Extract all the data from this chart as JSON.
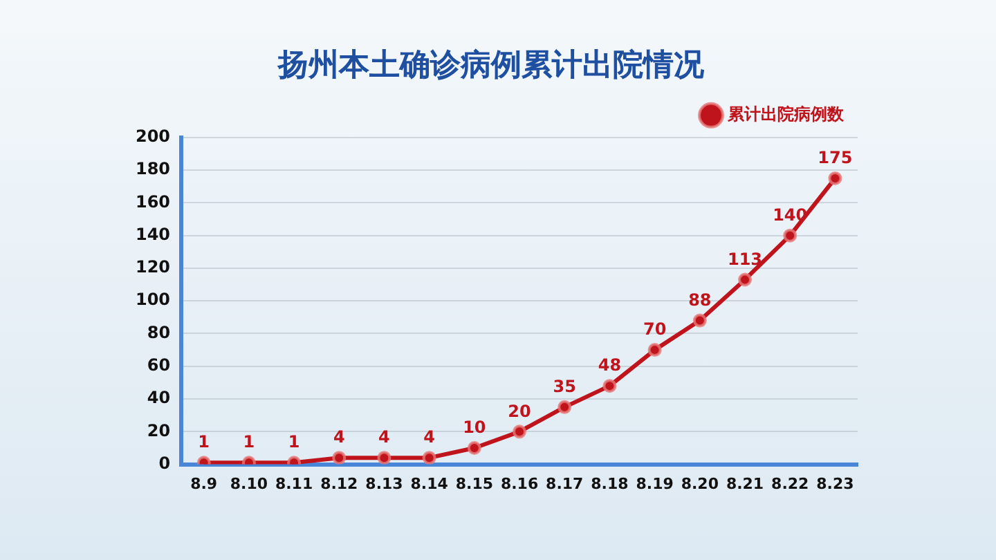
{
  "chart_data": {
    "type": "line",
    "title": "扬州本土确诊病例累计出院情况",
    "categories": [
      "8.9",
      "8.10",
      "8.11",
      "8.12",
      "8.13",
      "8.14",
      "8.15",
      "8.16",
      "8.17",
      "8.18",
      "8.19",
      "8.20",
      "8.21",
      "8.22",
      "8.23"
    ],
    "series": [
      {
        "name": "累计出院病例数",
        "color": "#c0141c",
        "values": [
          1,
          1,
          1,
          4,
          4,
          4,
          10,
          20,
          35,
          48,
          70,
          88,
          113,
          140,
          175
        ]
      }
    ],
    "ylim": [
      0,
      200
    ],
    "yticks": [
      0,
      20,
      40,
      60,
      80,
      100,
      120,
      140,
      160,
      180,
      200
    ],
    "grid": "y",
    "legend": "top right",
    "marker": "circle",
    "line_style": "solid",
    "data_labels": true
  }
}
